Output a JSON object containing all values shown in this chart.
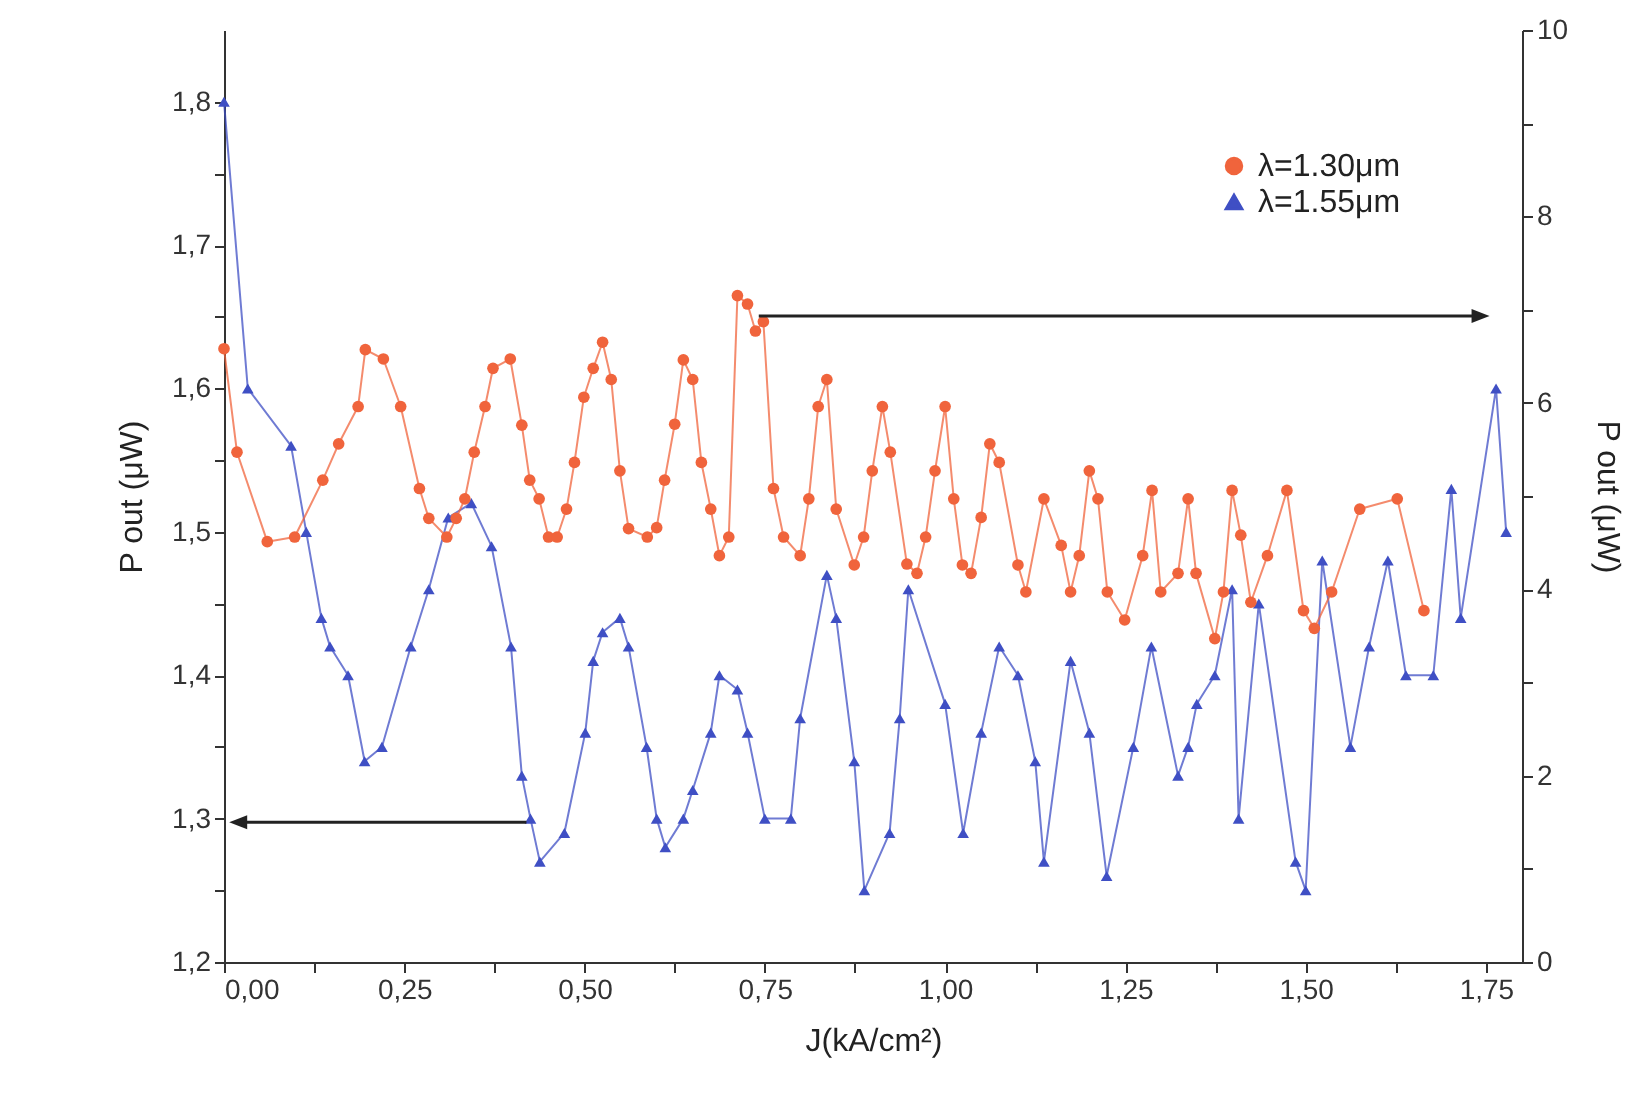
{
  "chart_data": {
    "type": "line",
    "xlabel": "J(kA/cm²)",
    "ylabel": "P out (μW)",
    "y2label": "P out (μW)",
    "xlim": [
      0,
      1.8
    ],
    "xticks": [
      {
        "value": 0,
        "label": "0,00"
      },
      {
        "value": 0.125,
        "label": null
      },
      {
        "value": 0.25,
        "label": "0,25"
      },
      {
        "value": 0.375,
        "label": null
      },
      {
        "value": 0.5,
        "label": "0,50"
      },
      {
        "value": 0.625,
        "label": null
      },
      {
        "value": 0.75,
        "label": "0,75"
      },
      {
        "value": 0.875,
        "label": null
      },
      {
        "value": 1,
        "label": "1,00"
      },
      {
        "value": 1.125,
        "label": null
      },
      {
        "value": 1.25,
        "label": "1,25"
      },
      {
        "value": 1.375,
        "label": null
      },
      {
        "value": 1.5,
        "label": "1,50"
      },
      {
        "value": 1.625,
        "label": null
      },
      {
        "value": 1.75,
        "label": "1,75"
      }
    ],
    "ylim": [
      1.2,
      1.85
    ],
    "yticks": [
      {
        "value": 1.2,
        "label": "1,2"
      },
      {
        "value": 1.25,
        "label": null
      },
      {
        "value": 1.3,
        "label": "1,3"
      },
      {
        "value": 1.35,
        "label": null
      },
      {
        "value": 1.4,
        "label": "1,4"
      },
      {
        "value": 1.45,
        "label": null
      },
      {
        "value": 1.5,
        "label": "1,5"
      },
      {
        "value": 1.55,
        "label": null
      },
      {
        "value": 1.6,
        "label": "1,6"
      },
      {
        "value": 1.65,
        "label": null
      },
      {
        "value": 1.7,
        "label": "1,7"
      },
      {
        "value": 1.75,
        "label": null
      },
      {
        "value": 1.8,
        "label": "1,8"
      }
    ],
    "y2lim": [
      0,
      10
    ],
    "y2ticks": [
      0,
      {
        "value": 1,
        "label": null
      },
      2,
      {
        "value": 3,
        "label": null
      },
      4,
      {
        "value": 5,
        "label": null
      },
      6,
      {
        "value": 7,
        "label": null
      },
      8,
      {
        "value": 9,
        "label": null
      },
      10
    ],
    "legend": "top right",
    "line_style": "solid",
    "series": [
      {
        "name": "λ=1.30μm",
        "color": "#f0643c",
        "marker": "circle",
        "axis": "y2",
        "x": [
          0,
          0.018,
          0.06,
          0.098,
          0.137,
          0.159,
          0.186,
          0.196,
          0.221,
          0.245,
          0.271,
          0.284,
          0.309,
          0.322,
          0.334,
          0.347,
          0.362,
          0.373,
          0.397,
          0.413,
          0.424,
          0.437,
          0.45,
          0.462,
          0.475,
          0.486,
          0.499,
          0.512,
          0.525,
          0.537,
          0.549,
          0.561,
          0.587,
          0.6,
          0.611,
          0.625,
          0.637,
          0.65,
          0.662,
          0.675,
          0.687,
          0.7,
          0.712,
          0.726,
          0.737,
          0.748,
          0.762,
          0.776,
          0.799,
          0.811,
          0.824,
          0.836,
          0.849,
          0.874,
          0.887,
          0.899,
          0.913,
          0.924,
          0.947,
          0.961,
          0.973,
          0.986,
          1,
          1.012,
          1.024,
          1.036,
          1.05,
          1.062,
          1.075,
          1.101,
          1.112,
          1.137,
          1.161,
          1.174,
          1.186,
          1.2,
          1.212,
          1.225,
          1.249,
          1.274,
          1.287,
          1.299,
          1.323,
          1.337,
          1.348,
          1.374,
          1.386,
          1.398,
          1.41,
          1.424,
          1.447,
          1.474,
          1.497,
          1.512,
          1.536,
          1.575,
          1.627,
          1.664
        ],
        "values": [
          6.58,
          5.47,
          4.51,
          4.56,
          5.17,
          5.56,
          5.96,
          6.57,
          6.47,
          5.96,
          5.08,
          4.76,
          4.56,
          4.76,
          4.97,
          5.47,
          5.96,
          6.37,
          6.47,
          5.76,
          5.17,
          4.97,
          4.56,
          4.56,
          4.86,
          5.36,
          6.06,
          6.37,
          6.65,
          6.25,
          5.27,
          4.65,
          4.56,
          4.66,
          5.17,
          5.77,
          6.46,
          6.25,
          5.36,
          4.86,
          4.36,
          4.56,
          7.15,
          7.06,
          6.77,
          6.87,
          5.08,
          4.56,
          4.36,
          4.97,
          5.96,
          6.25,
          4.86,
          4.26,
          4.56,
          5.27,
          5.96,
          5.47,
          4.27,
          4.17,
          4.56,
          5.27,
          5.96,
          4.97,
          4.26,
          4.17,
          4.77,
          5.56,
          5.36,
          4.26,
          3.97,
          4.97,
          4.47,
          3.97,
          4.36,
          5.27,
          4.97,
          3.97,
          3.67,
          4.36,
          5.06,
          3.97,
          4.17,
          4.97,
          4.17,
          3.47,
          3.97,
          5.06,
          4.58,
          3.86,
          4.36,
          5.06,
          3.77,
          3.58,
          3.97,
          4.86,
          4.97,
          3.77
        ]
      },
      {
        "name": "λ=1.55μm",
        "color": "#3f4fc4",
        "marker": "triangle",
        "x": [
          0,
          0.033,
          0.093,
          0.114,
          0.135,
          0.147,
          0.172,
          0.195,
          0.219,
          0.259,
          0.284,
          0.311,
          0.343,
          0.371,
          0.398,
          0.413,
          0.425,
          0.438,
          0.472,
          0.501,
          0.512,
          0.525,
          0.549,
          0.561,
          0.586,
          0.6,
          0.612,
          0.637,
          0.65,
          0.675,
          0.687,
          0.712,
          0.726,
          0.75,
          0.786,
          0.799,
          0.836,
          0.849,
          0.874,
          0.888,
          0.923,
          0.937,
          0.949,
          1,
          1.025,
          1.05,
          1.075,
          1.101,
          1.125,
          1.137,
          1.174,
          1.2,
          1.224,
          1.261,
          1.286,
          1.323,
          1.337,
          1.349,
          1.374,
          1.398,
          1.407,
          1.435,
          1.486,
          1.5,
          1.523,
          1.562,
          1.588,
          1.614,
          1.639,
          1.677,
          1.702,
          1.715,
          1.764,
          1.778
        ],
        "values": [
          1.8,
          1.6,
          1.56,
          1.5,
          1.44,
          1.42,
          1.4,
          1.34,
          1.35,
          1.42,
          1.46,
          1.51,
          1.52,
          1.49,
          1.42,
          1.33,
          1.3,
          1.27,
          1.29,
          1.36,
          1.41,
          1.43,
          1.44,
          1.42,
          1.35,
          1.3,
          1.28,
          1.3,
          1.32,
          1.36,
          1.4,
          1.39,
          1.36,
          1.3,
          1.3,
          1.37,
          1.47,
          1.44,
          1.34,
          1.25,
          1.29,
          1.37,
          1.46,
          1.38,
          1.29,
          1.36,
          1.42,
          1.4,
          1.34,
          1.27,
          1.41,
          1.36,
          1.26,
          1.35,
          1.42,
          1.33,
          1.35,
          1.38,
          1.4,
          1.46,
          1.3,
          1.45,
          1.27,
          1.25,
          1.48,
          1.35,
          1.42,
          1.48,
          1.4,
          1.4,
          1.53,
          1.44,
          1.6,
          1.5
        ]
      }
    ]
  }
}
